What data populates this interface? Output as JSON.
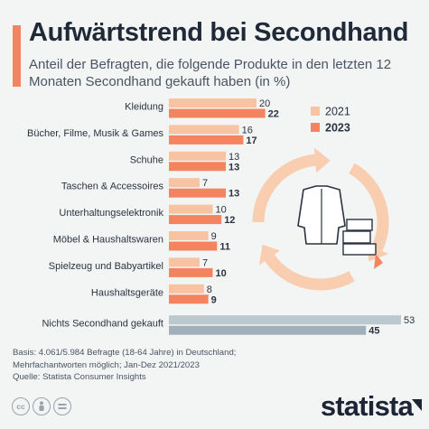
{
  "header": {
    "title": "Aufwärtstrend bei Secondhand",
    "subtitle": "Anteil der Befragten, die folgende Produkte in den letzten 12 Monaten Secondhand gekauft haben (in %)"
  },
  "footer": {
    "note_line1": "Basis: 4.061/5.984 Befragte (18-64 Jahre) in Deutschland;",
    "note_line2": "Mehrfachantworten möglich; Jan-Dez 2021/2023",
    "source": "Quelle: Statista Consumer Insights"
  },
  "logo": {
    "text": "statista"
  },
  "icons": [
    "cc-icon",
    "person-icon",
    "equals-icon"
  ],
  "colors": {
    "accent": "#f4845f",
    "series_2021": "#f8c3a2",
    "series_2023": "#f4845f",
    "nothing_2021": "#bcc8d0",
    "nothing_2023": "#9fb0bb",
    "illustration_arrows": "#f9cdb0"
  },
  "chart_data": {
    "type": "bar",
    "orientation": "horizontal",
    "categories": [
      "Kleidung",
      "Bücher, Filme, Musik & Games",
      "Schuhe",
      "Taschen & Accessoires",
      "Unterhaltungselektronik",
      "Möbel & Haushaltswaren",
      "Spielzeug und Babyartikel",
      "Haushaltsgeräte",
      "Nichts Secondhand gekauft"
    ],
    "series": [
      {
        "name": "2021",
        "values": [
          20,
          16,
          13,
          7,
          10,
          9,
          7,
          8,
          53
        ]
      },
      {
        "name": "2023",
        "values": [
          22,
          17,
          13,
          13,
          12,
          11,
          10,
          9,
          45
        ]
      }
    ],
    "xlim": [
      0,
      53
    ],
    "grid": false,
    "legend": "right"
  }
}
